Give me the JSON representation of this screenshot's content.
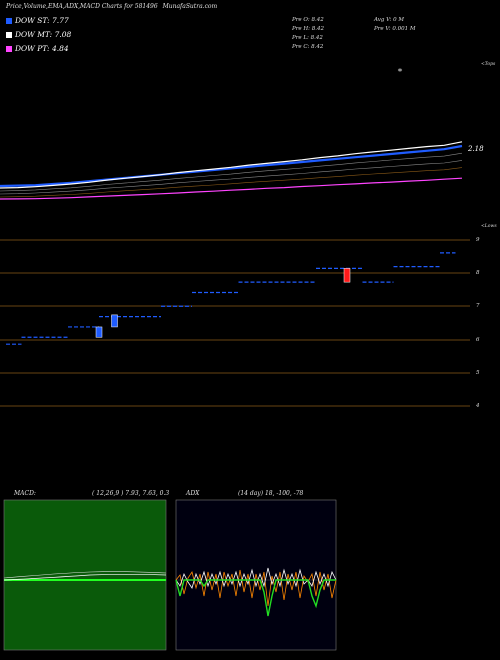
{
  "header": {
    "title": "Price,Volume,EMA,ADX,MACD Charts for 581496",
    "site": "MunafaSutra.com"
  },
  "legend": [
    {
      "label": "DOW ST: 7.77",
      "color": "#1f5cff"
    },
    {
      "label": "DOW MT: 7.08",
      "color": "#ffffff"
    },
    {
      "label": "DOW PT: 4.84",
      "color": "#ff44ff"
    }
  ],
  "info": {
    "col1": [
      "Pre   O: 8.42",
      "Pre   H: 8.42",
      "Pre   L: 8.42",
      "Pre   C: 8.42"
    ],
    "col2": [
      "Avg V: 0   M",
      "Pre   V: 0.001 M"
    ]
  },
  "ema_panel": {
    "corner_label": "<Tops",
    "last_label": "2.18",
    "bottom_label": "<Lows"
  },
  "price_panel": {
    "ticks": [
      "9",
      "8",
      "7",
      "6",
      "5",
      "4"
    ]
  },
  "macd": {
    "title": "MACD:",
    "params": "( 12,26,9 ) 7.93, 7.63, 0.3"
  },
  "adx": {
    "title": "ADX",
    "params": "(14  day) 18, -100, -78"
  },
  "chart_data": [
    {
      "type": "line",
      "name": "ema-panel",
      "series": [
        {
          "values": [
            0.0,
            0.01,
            0.02,
            0.05,
            0.08,
            0.12,
            0.16,
            0.2,
            0.24,
            0.28,
            0.32,
            0.36,
            0.4,
            0.44,
            0.48,
            0.52,
            0.56,
            0.6,
            0.64,
            0.68,
            0.72,
            0.76,
            0.8,
            0.84,
            0.88,
            0.92,
            1.0
          ],
          "color": "#1f5cff"
        },
        {
          "values": [
            0.0,
            0.01,
            0.03,
            0.06,
            0.09,
            0.13,
            0.18,
            0.22,
            0.26,
            0.3,
            0.35,
            0.39,
            0.43,
            0.47,
            0.52,
            0.56,
            0.6,
            0.64,
            0.69,
            0.73,
            0.78,
            0.82,
            0.86,
            0.9,
            0.94,
            0.97,
            1.05
          ],
          "color": "#ffffff"
        },
        {
          "values": [
            0.0,
            0.005,
            0.01,
            0.03,
            0.05,
            0.08,
            0.11,
            0.14,
            0.17,
            0.2,
            0.23,
            0.27,
            0.3,
            0.34,
            0.37,
            0.41,
            0.44,
            0.48,
            0.51,
            0.55,
            0.58,
            0.62,
            0.65,
            0.69,
            0.72,
            0.76,
            0.8
          ],
          "color": "#ff44ff"
        }
      ]
    },
    {
      "type": "bar",
      "name": "price-panel",
      "ylim": [
        3.6,
        9.2
      ],
      "ticks": [
        9,
        8,
        7,
        6,
        5,
        4
      ],
      "levels": [
        {
          "x0": 0,
          "x1": 1,
          "y": 5.8
        },
        {
          "x0": 1,
          "x1": 4,
          "y": 6.0
        },
        {
          "x0": 4,
          "x1": 6,
          "y": 6.3
        },
        {
          "x0": 6,
          "x1": 10,
          "y": 6.6
        },
        {
          "x0": 10,
          "x1": 12,
          "y": 6.9
        },
        {
          "x0": 12,
          "x1": 15,
          "y": 7.3
        },
        {
          "x0": 15,
          "x1": 20,
          "y": 7.6
        },
        {
          "x0": 20,
          "x1": 23,
          "y": 8.0
        },
        {
          "x0": 23,
          "x1": 25,
          "y": 7.6
        },
        {
          "x0": 25,
          "x1": 28,
          "y": 8.05
        },
        {
          "x0": 28,
          "x1": 29,
          "y": 8.45
        }
      ],
      "candles": [
        {
          "x": 6,
          "open": 6.0,
          "close": 6.3,
          "color": "#1f5cff"
        },
        {
          "x": 7,
          "open": 6.3,
          "close": 6.65,
          "color": "#1f5cff"
        },
        {
          "x": 22,
          "open": 8.0,
          "close": 7.6,
          "color": "#ff1a1a"
        }
      ]
    }
  ]
}
